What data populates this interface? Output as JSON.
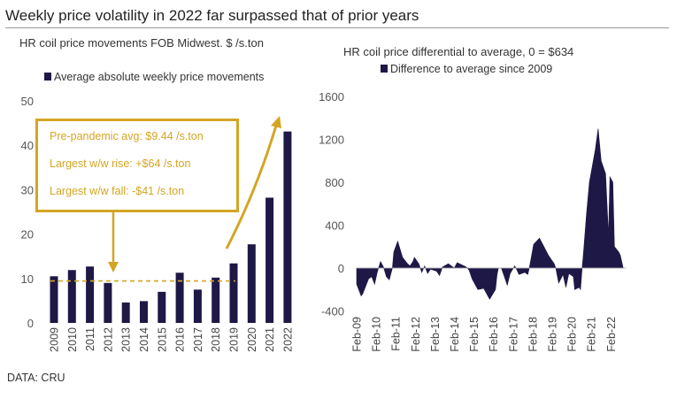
{
  "title": "Weekly price volatility in 2022 far surpassed that of prior years",
  "source": "DATA: CRU",
  "colors": {
    "bar": "#1e1846",
    "annotation": "#d4a524"
  },
  "chart_data": [
    {
      "type": "bar",
      "title": "HR coil price movements FOB Midwest. $ /s.ton",
      "legend": "Average absolute weekly price movements",
      "categories": [
        "2009",
        "2010",
        "2011",
        "2012",
        "2013",
        "2014",
        "2015",
        "2016",
        "2017",
        "2018",
        "2019",
        "2020",
        "2021",
        "2022"
      ],
      "values": [
        10.5,
        11.9,
        12.7,
        9.0,
        4.6,
        4.9,
        7.0,
        11.3,
        7.5,
        10.2,
        13.4,
        17.7,
        28.2,
        43.1
      ],
      "ylim": [
        0,
        50
      ],
      "yticks": [
        "0",
        "10",
        "20",
        "30",
        "40",
        "50"
      ],
      "reference_line": 9.44,
      "annotations": [
        "Pre-pandemic avg: $9.44 /s.ton",
        "Largest w/w rise: +$64 /s.ton",
        "Largest w/w fall: -$41 /s.ton"
      ]
    },
    {
      "type": "area",
      "title": "HR coil price differential to average, 0 = $634",
      "legend": "Difference to average since 2009",
      "ylim": [
        -400,
        1600
      ],
      "yticks": [
        "-400",
        "0",
        "400",
        "800",
        "1200",
        "1600"
      ],
      "xticks": [
        "Feb-09",
        "Feb-10",
        "Feb-11",
        "Feb-12",
        "Feb-13",
        "Feb-14",
        "Feb-15",
        "Feb-16",
        "Feb-17",
        "Feb-18",
        "Feb-19",
        "Feb-20",
        "Feb-21",
        "Feb-22"
      ],
      "x_years_since_feb09": [
        0,
        0.23,
        0.31,
        0.61,
        0.77,
        0.92,
        1.07,
        1.22,
        1.37,
        1.52,
        1.67,
        1.83,
        1.9,
        2.1,
        2.35,
        2.6,
        2.73,
        2.88,
        2.95,
        3.18,
        3.33,
        3.48,
        3.63,
        3.78,
        4.09,
        4.24,
        4.39,
        4.69,
        4.99,
        5.14,
        5.6,
        5.75,
        5.9,
        6.2,
        6.5,
        6.8,
        7.1,
        7.18,
        7.25,
        7.4,
        7.55,
        7.7,
        7.85,
        8.08,
        8.15,
        8.3,
        8.6,
        8.75,
        8.83,
        9.05,
        9.35,
        9.8,
        10.1,
        10.18,
        10.33,
        10.55,
        10.7,
        10.85,
        11.08,
        11.15,
        11.38,
        11.45,
        11.53,
        11.6,
        11.75,
        11.9,
        12.2,
        12.35,
        12.5,
        12.73,
        12.8,
        12.88,
        12.95,
        13.1,
        13.18,
        13.4,
        13.48,
        13.63,
        13.7
      ],
      "values": [
        -150,
        -260,
        -240,
        -100,
        -80,
        -150,
        -30,
        60,
        10,
        -80,
        -110,
        0,
        150,
        250,
        100,
        40,
        20,
        60,
        100,
        40,
        -40,
        20,
        -50,
        -10,
        -30,
        -70,
        10,
        40,
        0,
        50,
        10,
        -20,
        -100,
        -200,
        -190,
        -290,
        -200,
        -60,
        0,
        0,
        -80,
        -160,
        -50,
        20,
        0,
        -60,
        -40,
        -60,
        0,
        220,
        280,
        120,
        40,
        0,
        -140,
        -60,
        -180,
        -50,
        -80,
        -200,
        -180,
        -200,
        0,
        150,
        500,
        800,
        1100,
        1300,
        1000,
        880,
        600,
        300,
        850,
        800,
        200,
        150,
        120,
        0,
        0
      ]
    }
  ]
}
